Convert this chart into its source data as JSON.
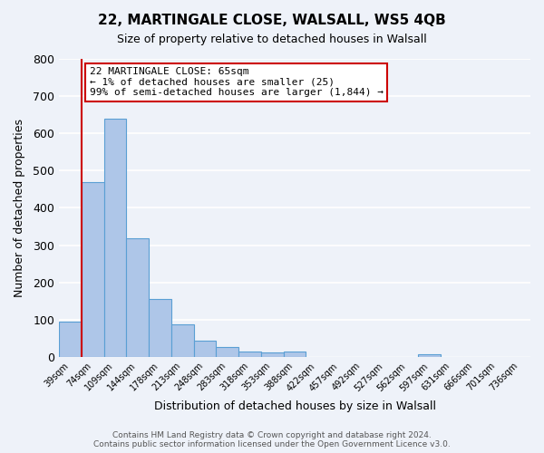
{
  "title": "22, MARTINGALE CLOSE, WALSALL, WS5 4QB",
  "subtitle": "Size of property relative to detached houses in Walsall",
  "xlabel": "Distribution of detached houses by size in Walsall",
  "ylabel": "Number of detached properties",
  "bar_values": [
    95,
    470,
    640,
    318,
    155,
    88,
    44,
    27,
    15,
    12,
    15,
    0,
    0,
    0,
    0,
    0,
    7,
    0,
    0,
    0,
    0
  ],
  "bin_labels": [
    "39sqm",
    "74sqm",
    "109sqm",
    "144sqm",
    "178sqm",
    "213sqm",
    "248sqm",
    "283sqm",
    "318sqm",
    "353sqm",
    "388sqm",
    "422sqm",
    "457sqm",
    "492sqm",
    "527sqm",
    "562sqm",
    "597sqm",
    "631sqm",
    "666sqm",
    "701sqm",
    "736sqm"
  ],
  "bar_color": "#aec6e8",
  "bar_edge_color": "#5a9fd4",
  "property_line_color": "#cc0000",
  "annotation_text": "22 MARTINGALE CLOSE: 65sqm\n← 1% of detached houses are smaller (25)\n99% of semi-detached houses are larger (1,844) →",
  "annotation_box_color": "#ffffff",
  "annotation_box_edge_color": "#cc0000",
  "ylim": [
    0,
    800
  ],
  "yticks": [
    0,
    100,
    200,
    300,
    400,
    500,
    600,
    700,
    800
  ],
  "footer_text": "Contains HM Land Registry data © Crown copyright and database right 2024.\nContains public sector information licensed under the Open Government Licence v3.0.",
  "background_color": "#eef2f9",
  "grid_color": "#ffffff",
  "figsize": [
    6.0,
    5.0
  ],
  "dpi": 100
}
